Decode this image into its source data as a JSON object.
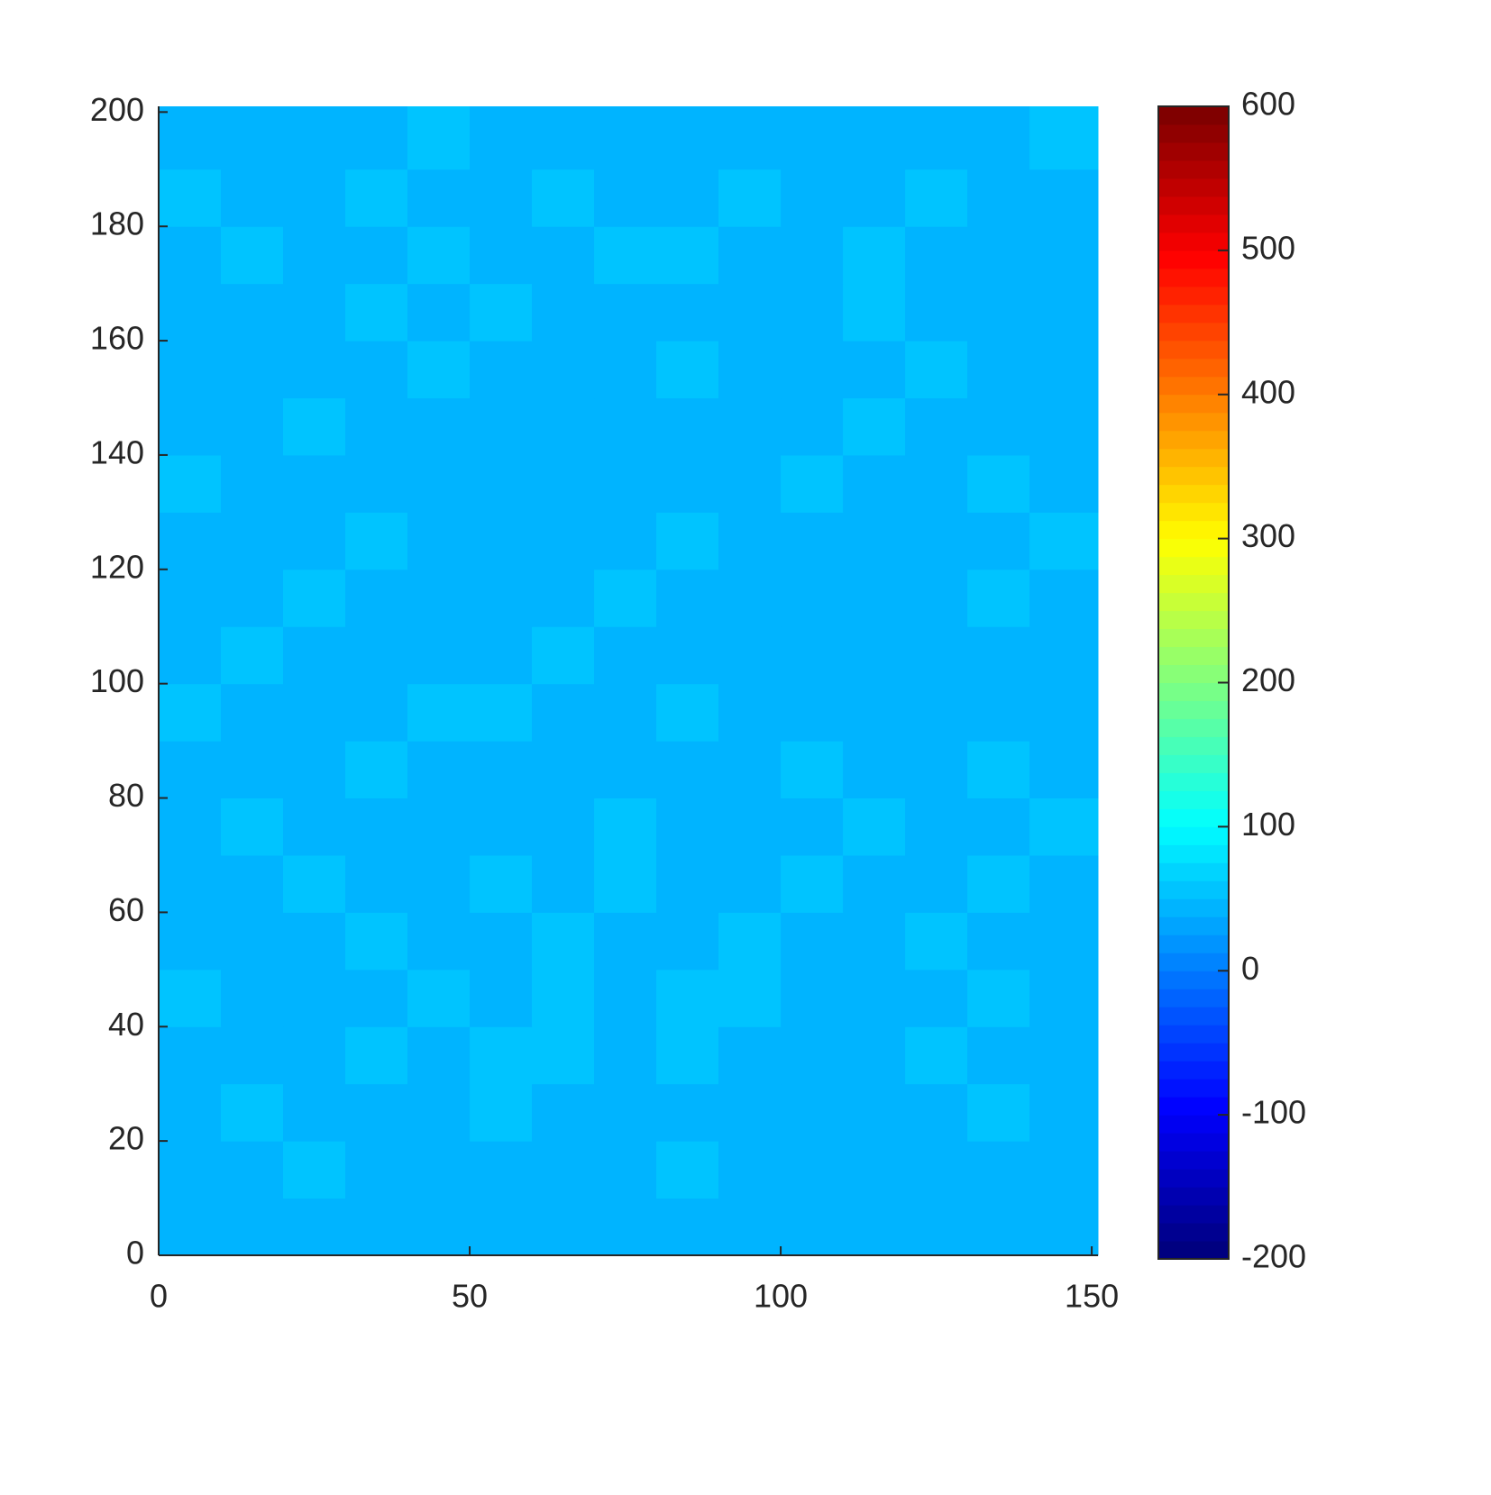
{
  "chart_data": {
    "type": "heatmap",
    "xlim": [
      0,
      151
    ],
    "ylim": [
      0,
      201
    ],
    "xticks": [
      0,
      50,
      100,
      150
    ],
    "yticks": [
      0,
      20,
      40,
      60,
      80,
      100,
      120,
      140,
      160,
      180,
      200
    ],
    "x": [
      0,
      10,
      20,
      30,
      40,
      50,
      60,
      70,
      80,
      90,
      100,
      110,
      120,
      130,
      140,
      151
    ],
    "y": [
      0,
      10,
      20,
      30,
      40,
      50,
      60,
      70,
      80,
      90,
      100,
      110,
      120,
      130,
      140,
      150,
      160,
      170,
      180,
      190,
      201
    ],
    "z": [
      [
        44,
        48,
        42,
        46,
        40,
        38,
        42,
        50,
        44,
        40,
        38,
        46,
        42,
        48,
        44
      ],
      [
        50,
        46,
        52,
        44,
        48,
        42,
        40,
        46,
        52,
        48,
        44,
        42,
        50,
        46,
        48
      ],
      [
        48,
        52,
        44,
        50,
        46,
        54,
        50,
        42,
        40,
        44,
        50,
        48,
        46,
        52,
        44
      ],
      [
        46,
        50,
        48,
        52,
        50,
        56,
        54,
        48,
        52,
        46,
        44,
        50,
        52,
        48,
        50
      ],
      [
        52,
        48,
        50,
        44,
        52,
        50,
        54,
        50,
        56,
        52,
        48,
        46,
        50,
        54,
        48
      ],
      [
        44,
        50,
        46,
        52,
        48,
        46,
        52,
        48,
        50,
        54,
        50,
        48,
        52,
        46,
        50
      ],
      [
        48,
        46,
        52,
        48,
        50,
        52,
        46,
        54,
        48,
        46,
        52,
        50,
        48,
        52,
        46
      ],
      [
        50,
        52,
        48,
        50,
        46,
        48,
        50,
        52,
        44,
        42,
        50,
        52,
        50,
        48,
        52
      ],
      [
        46,
        48,
        50,
        52,
        48,
        50,
        46,
        50,
        48,
        46,
        52,
        48,
        50,
        52,
        48
      ],
      [
        52,
        50,
        46,
        48,
        52,
        54,
        48,
        46,
        52,
        50,
        48,
        44,
        48,
        50,
        50
      ],
      [
        48,
        52,
        50,
        46,
        50,
        48,
        52,
        50,
        46,
        48,
        42,
        40,
        50,
        48,
        46
      ],
      [
        50,
        48,
        52,
        50,
        48,
        50,
        48,
        54,
        50,
        48,
        46,
        44,
        48,
        52,
        50
      ],
      [
        46,
        50,
        48,
        52,
        50,
        46,
        50,
        48,
        52,
        50,
        48,
        46,
        50,
        48,
        52
      ],
      [
        52,
        48,
        50,
        48,
        46,
        50,
        48,
        42,
        40,
        48,
        52,
        50,
        48,
        52,
        48
      ],
      [
        48,
        50,
        52,
        50,
        48,
        46,
        44,
        46,
        48,
        50,
        48,
        52,
        50,
        48,
        46
      ],
      [
        46,
        50,
        48,
        50,
        52,
        48,
        46,
        50,
        52,
        46,
        50,
        48,
        52,
        50,
        50
      ],
      [
        50,
        48,
        50,
        52,
        48,
        52,
        50,
        48,
        46,
        44,
        50,
        52,
        46,
        44,
        42
      ],
      [
        48,
        52,
        50,
        48,
        52,
        50,
        48,
        54,
        56,
        48,
        50,
        52,
        50,
        48,
        44
      ],
      [
        52,
        50,
        48,
        52,
        50,
        48,
        52,
        50,
        48,
        52,
        48,
        50,
        52,
        50,
        48
      ],
      [
        48,
        46,
        50,
        48,
        52,
        50,
        48,
        46,
        50,
        48,
        46,
        50,
        48,
        50,
        52
      ]
    ],
    "clim": [
      -200,
      600
    ],
    "cticks": [
      -200,
      -100,
      0,
      100,
      200,
      300,
      400,
      500,
      600
    ],
    "colormap": "jet"
  }
}
